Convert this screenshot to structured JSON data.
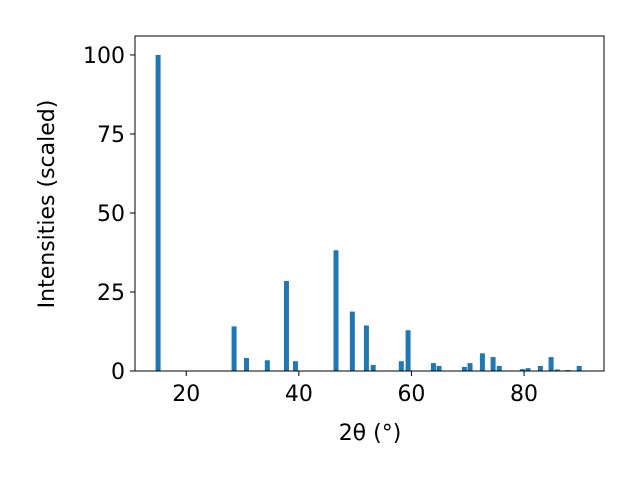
{
  "chart_data": {
    "type": "bar",
    "x_label": "2θ (°)",
    "y_label": "Intensities (scaled)",
    "x": [
      15.0,
      28.5,
      30.7,
      34.4,
      37.8,
      39.4,
      46.6,
      49.5,
      52.0,
      53.2,
      58.2,
      59.4,
      63.9,
      64.9,
      69.4,
      70.4,
      72.6,
      74.5,
      75.6,
      79.7,
      80.7,
      82.9,
      84.8,
      85.9,
      87.8,
      89.8
    ],
    "values": [
      100,
      14.1,
      4.1,
      3.4,
      28.5,
      3.1,
      38.2,
      18.8,
      14.4,
      1.9,
      3.1,
      12.9,
      2.5,
      1.6,
      1.3,
      2.5,
      5.6,
      4.4,
      1.6,
      0.6,
      0.9,
      1.6,
      4.4,
      0.5,
      0.3,
      1.6
    ],
    "color": "#1f77b4",
    "xlim": [
      10.9,
      94.2
    ],
    "xticks": [
      20,
      40,
      60,
      80
    ],
    "ylim": [
      0,
      106
    ],
    "yticks": [
      0,
      25,
      50,
      75,
      100
    ],
    "grid": false
  }
}
